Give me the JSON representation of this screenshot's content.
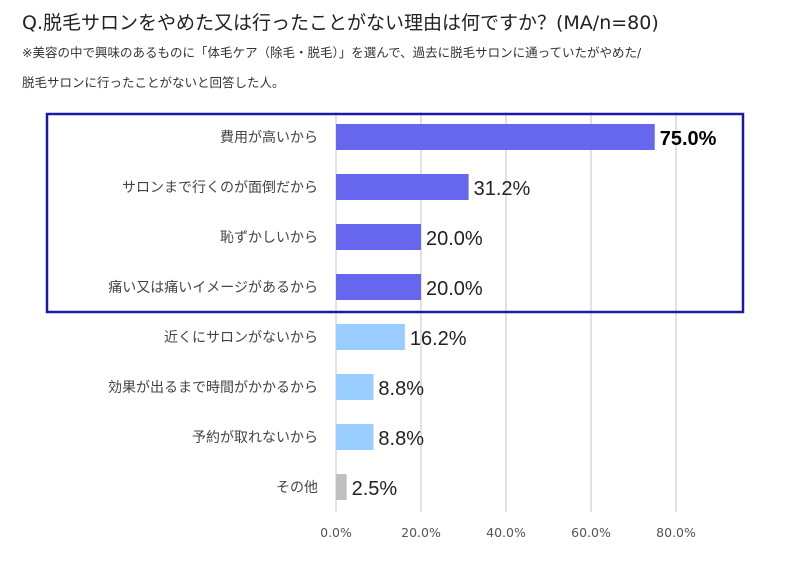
{
  "title": "Q.脱毛サロンをやめた又は行ったことがない理由は何ですか？(MA/n=80)",
  "note_line1": "※美容の中で興味のあるものに「体毛ケア（除毛・脱毛）」を選んで、過去に脱毛サロンに通っていたがやめた/",
  "note_line2": "脱毛サロンに行ったことがないと回答した人。",
  "chart_data": {
    "type": "bar",
    "orientation": "horizontal",
    "title": "Q.脱毛サロンをやめた又は行ったことがない理由は何ですか？(MA/n=80)",
    "categories": [
      "費用が高いから",
      "サロンまで行くのが面倒だから",
      "恥ずかしいから",
      "痛い又は痛いイメージがあるから",
      "近くにサロンがないから",
      "効果が出るまで時間がかかるから",
      "予約が取れないから",
      "その他"
    ],
    "values": [
      75.0,
      31.2,
      20.0,
      20.0,
      16.2,
      8.8,
      8.8,
      2.5
    ],
    "value_labels": [
      "75.0%",
      "31.2%",
      "20.0%",
      "20.0%",
      "16.2%",
      "8.8%",
      "8.8%",
      "2.5%"
    ],
    "xlim": [
      0,
      80
    ],
    "xticks": [
      "0.0%",
      "20.0%",
      "40.0%",
      "60.0%",
      "80.0%"
    ],
    "grid": true,
    "highlighted_group": "top 4 categories boxed",
    "colors": {
      "highlight": "#6666ee",
      "normal": "#99ccff",
      "other": "#bfbfbf",
      "box": "#1a1aaa",
      "grid": "#d9d9d9"
    }
  }
}
